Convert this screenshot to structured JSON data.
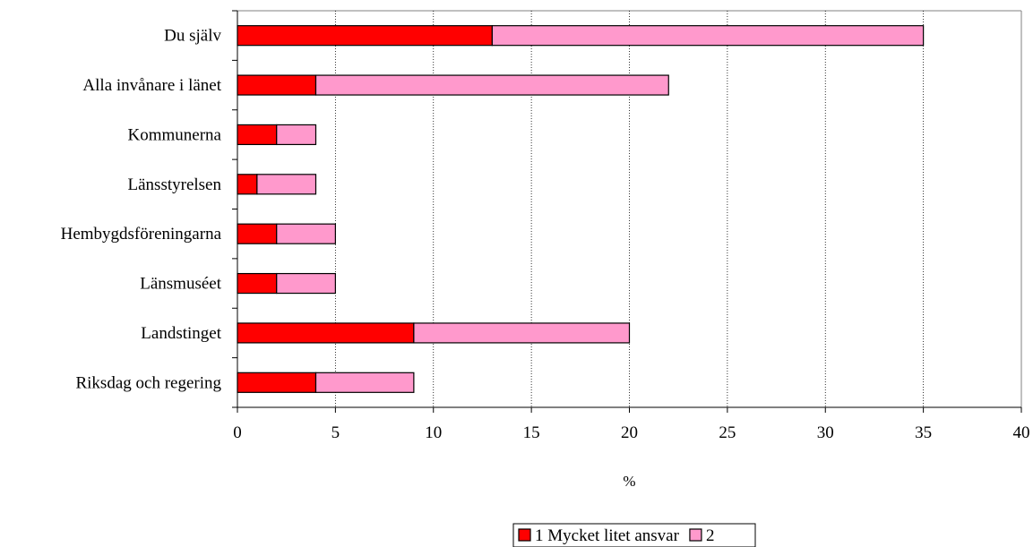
{
  "chart_data": {
    "type": "bar",
    "orientation": "horizontal",
    "stacked": true,
    "categories": [
      "Du själv",
      "Alla invånare i länet",
      "Kommunerna",
      "Länsstyrelsen",
      "Hembygdsföreningarna",
      "Länsmuséet",
      "Landstinget",
      "Riksdag och regering"
    ],
    "series": [
      {
        "name": "1 Mycket litet ansvar",
        "values": [
          13,
          4,
          2,
          1,
          2,
          2,
          9,
          4
        ],
        "color": "#ff0000"
      },
      {
        "name": "2",
        "values": [
          22,
          18,
          2,
          3,
          3,
          3,
          11,
          5
        ],
        "color": "#ff99cc"
      }
    ],
    "xlabel": "%",
    "ylabel": "",
    "xlim": [
      0,
      40
    ],
    "xticks": [
      0,
      5,
      10,
      15,
      20,
      25,
      30,
      35,
      40
    ],
    "grid": "vertical dotted",
    "legend_position": "bottom"
  }
}
